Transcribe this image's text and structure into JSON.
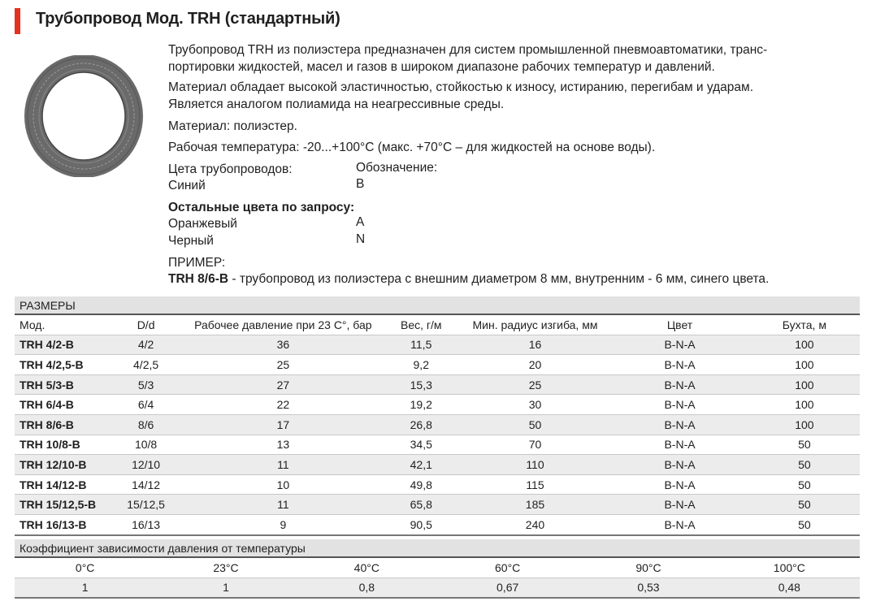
{
  "title": "Трубопровод Мод. TRH (стандартный)",
  "accent_color": "#e5321e",
  "image": "tube-coil",
  "description": {
    "p1_l1": "Трубопровод TRH из полиэстера предназначен для систем промышленной пневмоавтоматики, транс-",
    "p1_l2": "портировки жидкостей, масел и газов в широком диапазоне рабочих температур и давлений.",
    "p2_l1": "Материал обладает высокой эластичностью, стойкостью к износу, истиранию, перегибам и ударам.",
    "p2_l2": "Является аналогом полиамида на неагрессивные среды.",
    "material": "Материал: полиэстер.",
    "temperature": "Рабочая температура: -20...+100°C (макс. +70°C – для жидкостей на основе воды).",
    "colors_label": "Цета трубопроводов:",
    "designation_label": "Обозначение:",
    "standard_color": {
      "name": "Синий",
      "code": "B"
    },
    "other_colors_label": "Остальные цвета по запросу:",
    "other_colors": [
      {
        "name": "Оранжевый",
        "code": "A"
      },
      {
        "name": "Черный",
        "code": "N"
      }
    ],
    "example_label": "ПРИМЕР:",
    "example_code": "TRH 8/6-B",
    "example_text": " - трубопровод из полиэстера с внешним диаметром 8 мм, внутренним - 6 мм, синего цвета."
  },
  "sizes": {
    "section": "РАЗМЕРЫ",
    "headers": [
      "Мод.",
      "D/d",
      "Рабочее давление при 23 С°, бар",
      "Вес, г/м",
      "Мин. радиус изгиба, мм",
      "Цвет",
      "Бухта, м"
    ],
    "rows": [
      [
        "TRH 4/2-B",
        "4/2",
        "36",
        "11,5",
        "16",
        "B-N-A",
        "100"
      ],
      [
        "TRH 4/2,5-B",
        "4/2,5",
        "25",
        "9,2",
        "20",
        "B-N-A",
        "100"
      ],
      [
        "TRH 5/3-B",
        "5/3",
        "27",
        "15,3",
        "25",
        "B-N-A",
        "100"
      ],
      [
        "TRH 6/4-B",
        "6/4",
        "22",
        "19,2",
        "30",
        "B-N-A",
        "100"
      ],
      [
        "TRH 8/6-B",
        "8/6",
        "17",
        "26,8",
        "50",
        "B-N-A",
        "100"
      ],
      [
        "TRH 10/8-B",
        "10/8",
        "13",
        "34,5",
        "70",
        "B-N-A",
        "50"
      ],
      [
        "TRH 12/10-B",
        "12/10",
        "11",
        "42,1",
        "110",
        "B-N-A",
        "50"
      ],
      [
        "TRH 14/12-B",
        "14/12",
        "10",
        "49,8",
        "115",
        "B-N-A",
        "50"
      ],
      [
        "TRH 15/12,5-B",
        "15/12,5",
        "11",
        "65,8",
        "185",
        "B-N-A",
        "50"
      ],
      [
        "TRH 16/13-B",
        "16/13",
        "9",
        "90,5",
        "240",
        "B-N-A",
        "50"
      ]
    ]
  },
  "coefficients": {
    "section": "Коэффициент зависимости давления от температуры",
    "temperatures": [
      "0°C",
      "23°C",
      "40°C",
      "60°C",
      "90°C",
      "100°C"
    ],
    "values": [
      "1",
      "1",
      "0,8",
      "0,67",
      "0,53",
      "0,48"
    ]
  }
}
